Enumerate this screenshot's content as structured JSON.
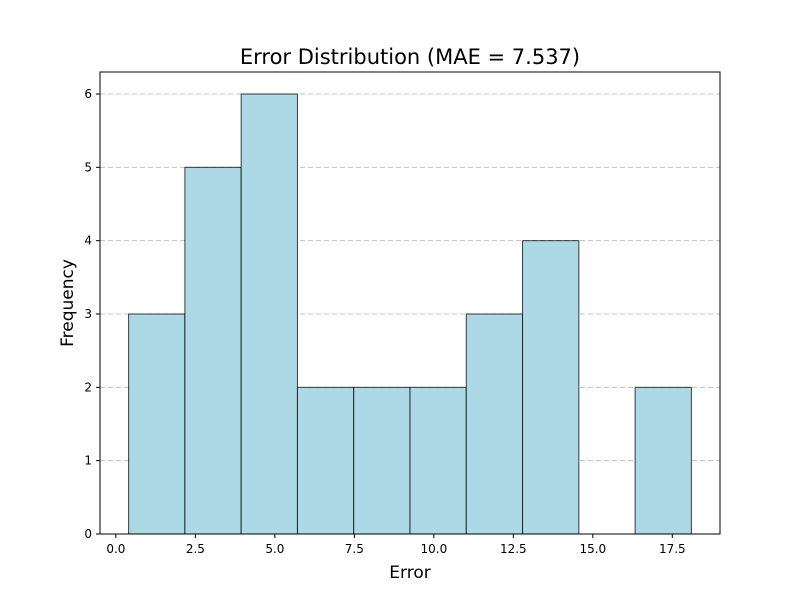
{
  "chart_data": {
    "type": "bar",
    "title": "Error Distribution (MAE = 7.537)",
    "xlabel": "Error",
    "ylabel": "Frequency",
    "xlim": [
      -0.5,
      19.0
    ],
    "ylim": [
      0,
      6.3
    ],
    "xticks": [
      0.0,
      2.5,
      5.0,
      7.5,
      10.0,
      12.5,
      15.0,
      17.5
    ],
    "xtick_labels": [
      "0.0",
      "2.5",
      "5.0",
      "7.5",
      "10.0",
      "12.5",
      "15.0",
      "17.5"
    ],
    "yticks": [
      0,
      1,
      2,
      3,
      4,
      5,
      6
    ],
    "ytick_labels": [
      "0",
      "1",
      "2",
      "3",
      "4",
      "5",
      "6"
    ],
    "bin_edges": [
      0.4,
      2.17,
      3.94,
      5.71,
      7.48,
      9.25,
      11.02,
      12.79,
      14.56,
      16.33,
      18.1
    ],
    "counts": [
      3,
      5,
      6,
      2,
      2,
      2,
      3,
      4,
      0,
      2
    ],
    "grid": "y",
    "grid_style": "dashed",
    "bar_color": "#ADD8E6",
    "edge_color": "#000000"
  }
}
